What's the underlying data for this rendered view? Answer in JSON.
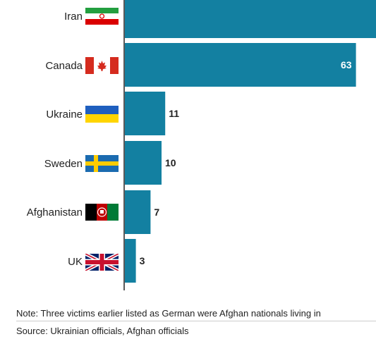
{
  "chart_data": {
    "type": "bar",
    "orientation": "horizontal",
    "categories": [
      "Iran",
      "Canada",
      "Ukraine",
      "Sweden",
      "Afghanistan",
      "UK"
    ],
    "values": [
      82,
      63,
      11,
      10,
      7,
      3
    ],
    "value_labels": [
      "",
      "63",
      "11",
      "10",
      "7",
      "3"
    ],
    "xlim": [
      0,
      80
    ],
    "bar_color": "#1380a1",
    "grid": false,
    "flags": [
      "iran-flag",
      "canada-flag",
      "ukraine-flag",
      "sweden-flag",
      "afghanistan-flag",
      "uk-flag"
    ]
  },
  "footer": {
    "note": "Note: Three victims earlier listed as German were Afghan nationals living in",
    "source": "Source: Ukrainian officials, Afghan officials"
  }
}
